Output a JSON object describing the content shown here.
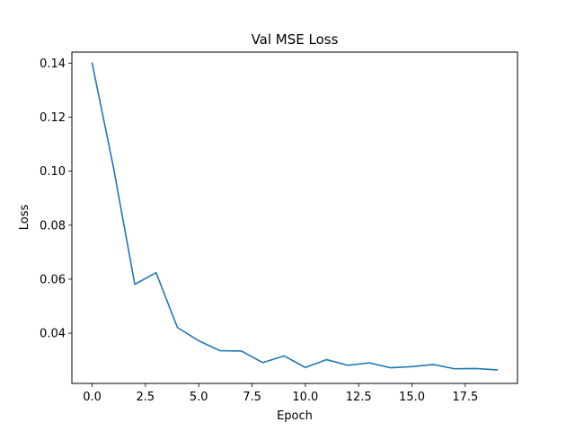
{
  "chart_data": {
    "type": "line",
    "title": "Val MSE Loss",
    "xlabel": "Epoch",
    "ylabel": "Loss",
    "xlim": [
      -0.95,
      19.95
    ],
    "ylim": [
      0.0214,
      0.1441
    ],
    "x_ticks": [
      0.0,
      2.5,
      5.0,
      7.5,
      10.0,
      12.5,
      15.0,
      17.5
    ],
    "x_tick_labels": [
      "0.0",
      "2.5",
      "5.0",
      "7.5",
      "10.0",
      "12.5",
      "15.0",
      "17.5"
    ],
    "y_ticks": [
      0.04,
      0.06,
      0.08,
      0.1,
      0.12,
      0.14
    ],
    "y_tick_labels": [
      "0.04",
      "0.06",
      "0.08",
      "0.10",
      "0.12",
      "0.14"
    ],
    "grid": false,
    "legend": "none",
    "line_color": "#1f77b4",
    "series": [
      {
        "x": [
          0,
          1,
          2,
          3,
          4,
          5,
          6,
          7,
          8,
          9,
          10,
          11,
          12,
          13,
          14,
          15,
          16,
          17,
          18,
          19
        ],
        "values": [
          0.14,
          0.1014,
          0.0581,
          0.0624,
          0.0421,
          0.0372,
          0.0335,
          0.0334,
          0.0291,
          0.0316,
          0.0273,
          0.0302,
          0.0281,
          0.029,
          0.0272,
          0.0276,
          0.0284,
          0.0268,
          0.0269,
          0.0264
        ]
      }
    ]
  }
}
